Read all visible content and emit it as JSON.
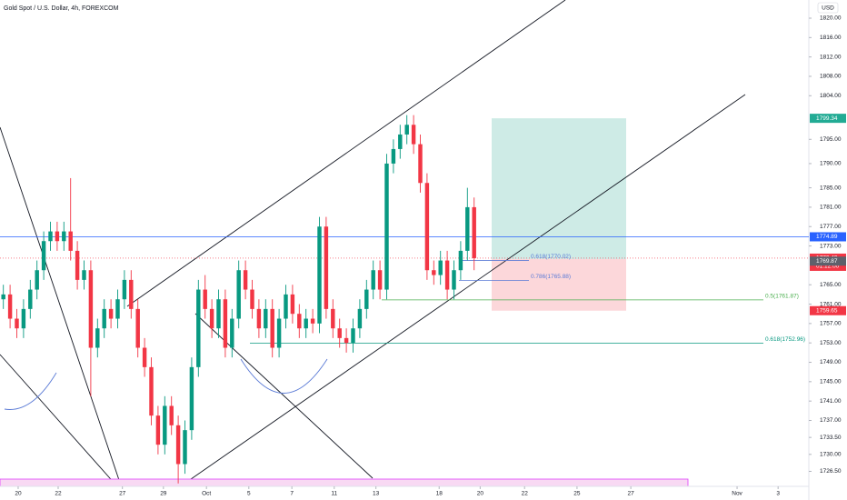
{
  "chart_data": {
    "type": "candlestick",
    "title": "Gold Spot / U.S. Dollar, 4h, FOREXCOM",
    "currency": "USD",
    "up_color": "#089981",
    "down_color": "#f23645",
    "xlim": [
      -0.5,
      119.5
    ],
    "xticks": [
      {
        "value": 2.2,
        "label": "20"
      },
      {
        "value": 8.15,
        "label": "22"
      },
      {
        "value": 17.7,
        "label": "27"
      },
      {
        "value": 23.8,
        "label": "29"
      },
      {
        "value": 30.2,
        "label": "Oct"
      },
      {
        "value": 36.5,
        "label": "5"
      },
      {
        "value": 42.9,
        "label": "7"
      },
      {
        "value": 49.2,
        "label": "11"
      },
      {
        "value": 55.4,
        "label": "13"
      },
      {
        "value": 64.8,
        "label": "18"
      },
      {
        "value": 70.9,
        "label": "20"
      },
      {
        "value": 77.5,
        "label": "22"
      },
      {
        "value": 85.3,
        "label": "25"
      },
      {
        "value": 93.3,
        "label": "27"
      },
      {
        "value": 109.1,
        "label": "Nov"
      },
      {
        "value": 115.2,
        "label": "3"
      }
    ],
    "ylim": [
      1723.4,
      1823.75
    ],
    "yticks": [
      {
        "value": 1820,
        "label": "1820.00"
      },
      {
        "value": 1816,
        "label": "1816.00"
      },
      {
        "value": 1812,
        "label": "1812.00"
      },
      {
        "value": 1808,
        "label": "1808.00"
      },
      {
        "value": 1804,
        "label": "1804.00"
      },
      {
        "value": 1795,
        "label": "1795.00"
      },
      {
        "value": 1790,
        "label": "1790.00"
      },
      {
        "value": 1785,
        "label": "1785.00"
      },
      {
        "value": 1781,
        "label": "1781.00"
      },
      {
        "value": 1777,
        "label": "1777.00"
      },
      {
        "value": 1773,
        "label": "1773.00"
      },
      {
        "value": 1765,
        "label": "1765.00"
      },
      {
        "value": 1761,
        "label": "1761.00"
      },
      {
        "value": 1757,
        "label": "1757.00"
      },
      {
        "value": 1753,
        "label": "1753.00"
      },
      {
        "value": 1749,
        "label": "1749.00"
      },
      {
        "value": 1745,
        "label": "1745.00"
      },
      {
        "value": 1741,
        "label": "1741.00"
      },
      {
        "value": 1737,
        "label": "1737.00"
      },
      {
        "value": 1733.5,
        "label": "1733.50"
      },
      {
        "value": 1730,
        "label": "1730.00"
      },
      {
        "value": 1726.5,
        "label": "1726.50"
      }
    ],
    "x": [
      0,
      1,
      2,
      3,
      4,
      5,
      6,
      7,
      8,
      9,
      10,
      11,
      12,
      13,
      14,
      15,
      16,
      17,
      18,
      19,
      20,
      21,
      22,
      23,
      24,
      25,
      26,
      27,
      28,
      29,
      30,
      31,
      32,
      33,
      34,
      35,
      36,
      37,
      38,
      39,
      40,
      41,
      42,
      43,
      44,
      45,
      46,
      47,
      48,
      49,
      50,
      51,
      52,
      53,
      54,
      55,
      56,
      57,
      58,
      59,
      60,
      61,
      62,
      63,
      64,
      65,
      66,
      67,
      68,
      69,
      70
    ],
    "open": [
      1762,
      1763,
      1758,
      1756,
      1760,
      1764,
      1768,
      1774,
      1776,
      1774,
      1776,
      1772,
      1766,
      1768,
      1752,
      1756,
      1760,
      1758,
      1762,
      1766,
      1760,
      1752,
      1748,
      1738,
      1732,
      1740,
      1736,
      1728,
      1735,
      1748,
      1764,
      1760,
      1756,
      1762,
      1752,
      1758,
      1768,
      1764,
      1760,
      1756,
      1760,
      1752,
      1758,
      1763,
      1759,
      1756,
      1758,
      1757,
      1777,
      1760,
      1756,
      1754,
      1753,
      1756,
      1760,
      1764,
      1768,
      1764,
      1790,
      1793,
      1796,
      1798,
      1794,
      1786,
      1768,
      1767,
      1770,
      1764,
      1768,
      1772,
      1781
    ],
    "high": [
      1765,
      1765,
      1760,
      1762,
      1766,
      1770,
      1776,
      1778,
      1778,
      1778,
      1787,
      1774,
      1770,
      1770,
      1758,
      1762,
      1762,
      1764,
      1768,
      1768,
      1762,
      1754,
      1750,
      1740,
      1742,
      1742,
      1738,
      1737,
      1750,
      1766,
      1767,
      1762,
      1764,
      1764,
      1760,
      1770,
      1770,
      1766,
      1762,
      1762,
      1762,
      1760,
      1765,
      1765,
      1761,
      1760,
      1760,
      1779,
      1779,
      1762,
      1758,
      1756,
      1758,
      1762,
      1766,
      1770,
      1770,
      1792,
      1795,
      1798,
      1800,
      1800,
      1796,
      1788,
      1770,
      1772,
      1772,
      1770,
      1774,
      1785,
      1783
    ],
    "low": [
      1760,
      1756,
      1754,
      1754,
      1758,
      1762,
      1766,
      1772,
      1772,
      1772,
      1770,
      1764,
      1764,
      1742,
      1750,
      1754,
      1756,
      1756,
      1760,
      1758,
      1750,
      1746,
      1736,
      1730,
      1730,
      1734,
      1724,
      1726,
      1733,
      1746,
      1758,
      1754,
      1754,
      1750,
      1750,
      1756,
      1762,
      1758,
      1754,
      1754,
      1750,
      1750,
      1756,
      1757,
      1754,
      1754,
      1755,
      1755,
      1758,
      1754,
      1752,
      1751,
      1751,
      1754,
      1758,
      1762,
      1762,
      1762,
      1788,
      1791,
      1794,
      1792,
      1784,
      1766,
      1765,
      1765,
      1762,
      1762,
      1766,
      1770,
      1768
    ],
    "close": [
      1763,
      1758,
      1756,
      1760,
      1764,
      1768,
      1774,
      1776,
      1774,
      1776,
      1772,
      1766,
      1768,
      1752,
      1756,
      1760,
      1758,
      1762,
      1766,
      1760,
      1752,
      1748,
      1738,
      1732,
      1740,
      1736,
      1728,
      1735,
      1748,
      1764,
      1760,
      1756,
      1762,
      1752,
      1758,
      1768,
      1764,
      1760,
      1756,
      1760,
      1752,
      1758,
      1763,
      1759,
      1756,
      1758,
      1757,
      1777,
      1760,
      1756,
      1754,
      1753,
      1756,
      1760,
      1764,
      1768,
      1764,
      1790,
      1793,
      1796,
      1798,
      1794,
      1786,
      1768,
      1767,
      1770,
      1764,
      1768,
      1772,
      1781,
      1770.49
    ],
    "badges": [
      {
        "price": 1799.34,
        "color": "#22ab94"
      },
      {
        "price": 1774.89,
        "color": "#2962ff"
      },
      {
        "price": 1770.49,
        "color": "#f23645",
        "countdown": "01:12:00"
      },
      {
        "price": 1769.87,
        "color": "#5d606b"
      },
      {
        "price": 1759.65,
        "color": "#f23645"
      }
    ],
    "position_entry": 1770.3,
    "fib_levels": [
      {
        "label": "0.618(1770.02)",
        "price": 1770.02,
        "color": "#5b7bd6"
      },
      {
        "label": "0.786(1765.88)",
        "price": 1765.88,
        "color": "#5b7bd6"
      },
      {
        "label": "0.5(1761.87)",
        "price": 1761.87,
        "color": "#4caf50"
      },
      {
        "label": "0.618(1752.96)",
        "price": 1752.96,
        "color": "#089981"
      }
    ]
  }
}
